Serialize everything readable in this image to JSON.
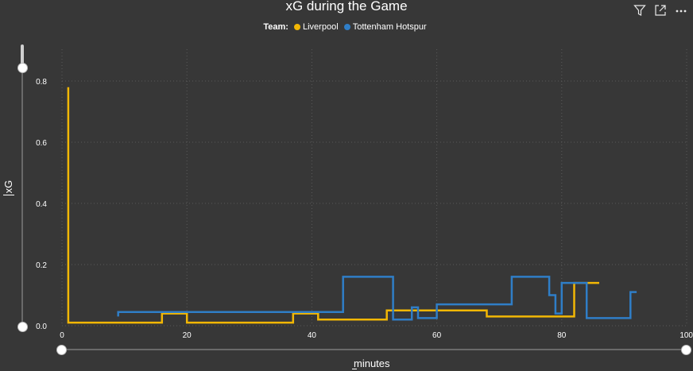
{
  "visual": {
    "title": "xG during the Game",
    "legend_title": "Team:",
    "toolbar": {
      "filter_icon": "filter-icon",
      "focus_icon": "focus-mode-icon",
      "more_icon": "more-options-icon"
    }
  },
  "chart_data": {
    "type": "line",
    "title": "xG during the Game",
    "xlabel": "minutes",
    "ylabel": "xG",
    "xlim": [
      0,
      100
    ],
    "ylim": [
      0,
      0.8
    ],
    "x_ticks": [
      0,
      20,
      40,
      60,
      80,
      100
    ],
    "y_ticks": [
      0.0,
      0.2,
      0.4,
      0.6,
      0.8
    ],
    "grid": true,
    "legend_position": "top-center",
    "step": true,
    "series": [
      {
        "name": "Liverpool",
        "color": "#F2B705",
        "points": [
          [
            1,
            0.78
          ],
          [
            1,
            0.01
          ],
          [
            16,
            0.01
          ],
          [
            16,
            0.04
          ],
          [
            20,
            0.04
          ],
          [
            20,
            0.01
          ],
          [
            37,
            0.01
          ],
          [
            37,
            0.04
          ],
          [
            41,
            0.04
          ],
          [
            41,
            0.02
          ],
          [
            52,
            0.02
          ],
          [
            52,
            0.05
          ],
          [
            68,
            0.05
          ],
          [
            68,
            0.03
          ],
          [
            82,
            0.03
          ],
          [
            82,
            0.14
          ],
          [
            86,
            0.14
          ]
        ]
      },
      {
        "name": "Tottenham Hotspur",
        "color": "#2F7EC7",
        "points": [
          [
            9,
            0.03
          ],
          [
            9,
            0.045
          ],
          [
            45,
            0.045
          ],
          [
            45,
            0.16
          ],
          [
            53,
            0.16
          ],
          [
            53,
            0.02
          ],
          [
            56,
            0.02
          ],
          [
            56,
            0.06
          ],
          [
            57,
            0.06
          ],
          [
            57,
            0.025
          ],
          [
            60,
            0.025
          ],
          [
            60,
            0.07
          ],
          [
            72,
            0.07
          ],
          [
            72,
            0.16
          ],
          [
            78,
            0.16
          ],
          [
            78,
            0.1
          ],
          [
            79,
            0.1
          ],
          [
            79,
            0.04
          ],
          [
            80,
            0.04
          ],
          [
            80,
            0.14
          ],
          [
            84,
            0.14
          ],
          [
            84,
            0.025
          ],
          [
            91,
            0.025
          ],
          [
            91,
            0.11
          ],
          [
            92,
            0.11
          ]
        ]
      }
    ]
  }
}
